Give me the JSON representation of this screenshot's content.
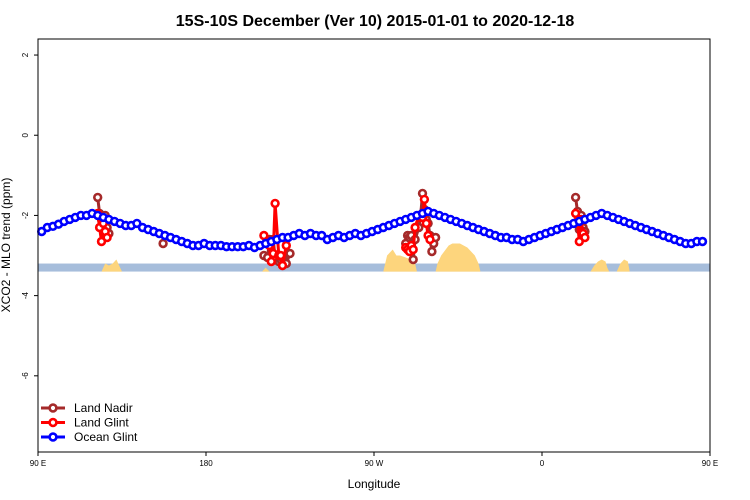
{
  "chart_data": {
    "type": "line",
    "title": "15S-10S December (Ver 10)   2015-01-01 to 2020-12-18",
    "xlabel": "Longitude",
    "ylabel": "XCO2 - MLO trend (ppm)",
    "xlim": [
      -180,
      180
    ],
    "ylim": [
      -7.9,
      2.4
    ],
    "x_ticks": [
      {
        "value": -180,
        "label": "90 E"
      },
      {
        "value": -90,
        "label": "180"
      },
      {
        "value": 0,
        "label": "90 W"
      },
      {
        "value": 90,
        "label": "0"
      },
      {
        "value": 180,
        "label": "90 E"
      }
    ],
    "y_ticks": [
      {
        "value": 2,
        "label": "2"
      },
      {
        "value": 0,
        "label": "0"
      },
      {
        "value": -2,
        "label": "-2"
      },
      {
        "value": -4,
        "label": "-4"
      },
      {
        "value": -6,
        "label": "-6"
      }
    ],
    "legend_position": "bottom-left",
    "land_band": {
      "y_top": -3.2,
      "y_bottom": -3.4,
      "color": "#a6bddb"
    },
    "land_mask": {
      "color": "#fdd57d",
      "regions": [
        [
          [
            -146,
            -3.4
          ],
          [
            -145,
            -3.3
          ],
          [
            -144,
            -3.2
          ],
          [
            -142,
            -3.25
          ],
          [
            -140,
            -3.2
          ],
          [
            -138,
            -3.1
          ],
          [
            -136,
            -3.3
          ],
          [
            -135,
            -3.4
          ]
        ],
        [
          [
            -60,
            -3.4
          ],
          [
            -58,
            -3.3
          ],
          [
            -57,
            -3.35
          ],
          [
            -56,
            -3.4
          ]
        ],
        [
          [
            5,
            -3.4
          ],
          [
            7,
            -3.0
          ],
          [
            10,
            -2.85
          ],
          [
            12,
            -3.0
          ],
          [
            14,
            -3.0
          ],
          [
            17,
            -3.05
          ],
          [
            20,
            -3.1
          ],
          [
            22,
            -3.2
          ],
          [
            23,
            -3.4
          ]
        ],
        [
          [
            33,
            -3.4
          ],
          [
            34,
            -3.2
          ],
          [
            36,
            -3.0
          ],
          [
            40,
            -2.75
          ],
          [
            42,
            -2.7
          ],
          [
            46,
            -2.7
          ],
          [
            50,
            -2.8
          ],
          [
            54,
            -3.0
          ],
          [
            56,
            -3.2
          ],
          [
            57,
            -3.4
          ]
        ],
        [
          [
            116,
            -3.4
          ],
          [
            118,
            -3.25
          ],
          [
            120,
            -3.15
          ],
          [
            122,
            -3.1
          ],
          [
            124,
            -3.15
          ],
          [
            125,
            -3.3
          ],
          [
            126,
            -3.4
          ]
        ],
        [
          [
            130,
            -3.4
          ],
          [
            132,
            -3.2
          ],
          [
            134,
            -3.1
          ],
          [
            136,
            -3.15
          ],
          [
            137,
            -3.4
          ]
        ]
      ]
    },
    "series": [
      {
        "name": "Land Nadir",
        "color": "#a52a2a",
        "segments": [
          [
            [
              -148,
              -1.55
            ],
            [
              -147,
              -1.95
            ],
            [
              -146,
              -2.1
            ],
            [
              -145,
              -2.3
            ],
            [
              -144,
              -2.0
            ],
            [
              -143,
              -2.3
            ],
            [
              -142,
              -2.45
            ]
          ],
          [
            [
              -113,
              -2.7
            ]
          ],
          [
            [
              -59,
              -3.0
            ],
            [
              -57,
              -3.05
            ],
            [
              -56,
              -2.6
            ],
            [
              -55,
              -2.65
            ],
            [
              -54,
              -2.6
            ],
            [
              -53,
              -3.05
            ],
            [
              -51,
              -3.15
            ],
            [
              -50,
              -3.1
            ],
            [
              -49,
              -3.05
            ],
            [
              -47,
              -3.2
            ],
            [
              -45,
              -2.95
            ]
          ],
          [
            [
              17,
              -2.7
            ],
            [
              18,
              -2.5
            ],
            [
              19,
              -2.55
            ],
            [
              20,
              -2.5
            ],
            [
              21,
              -3.1
            ],
            [
              22,
              -2.6
            ],
            [
              24,
              -2.3
            ],
            [
              25,
              -2.0
            ],
            [
              26,
              -1.45
            ],
            [
              27,
              -1.85
            ],
            [
              28,
              -2.1
            ],
            [
              29,
              -2.2
            ],
            [
              30,
              -2.5
            ],
            [
              31,
              -2.9
            ],
            [
              32,
              -2.7
            ],
            [
              33,
              -2.55
            ]
          ],
          [
            [
              108,
              -1.55
            ],
            [
              109,
              -1.9
            ],
            [
              110,
              -2.35
            ],
            [
              111,
              -2.0
            ],
            [
              112,
              -2.3
            ],
            [
              113,
              -2.4
            ]
          ]
        ]
      },
      {
        "name": "Land Glint",
        "color": "#ff0000",
        "segments": [
          [
            [
              -148,
              -1.95
            ],
            [
              -147,
              -2.3
            ],
            [
              -146,
              -2.65
            ],
            [
              -145,
              -2.2
            ],
            [
              -144,
              -2.4
            ],
            [
              -143,
              -2.55
            ]
          ],
          [
            [
              -59,
              -2.5
            ],
            [
              -57,
              -2.65
            ],
            [
              -56,
              -2.75
            ],
            [
              -55,
              -3.15
            ],
            [
              -54,
              -2.95
            ],
            [
              -53,
              -1.7
            ],
            [
              -51,
              -3.0
            ],
            [
              -50,
              -3.0
            ],
            [
              -49,
              -3.25
            ],
            [
              -47,
              -2.75
            ]
          ],
          [
            [
              17,
              -2.8
            ],
            [
              18,
              -2.85
            ],
            [
              19,
              -2.9
            ],
            [
              20,
              -2.75
            ],
            [
              21,
              -2.85
            ],
            [
              22,
              -2.3
            ],
            [
              24,
              -2.0
            ],
            [
              25,
              -2.05
            ],
            [
              26,
              -2.05
            ],
            [
              27,
              -1.6
            ],
            [
              28,
              -2.2
            ],
            [
              29,
              -2.5
            ],
            [
              30,
              -2.6
            ]
          ],
          [
            [
              108,
              -1.95
            ],
            [
              109,
              -2.15
            ],
            [
              110,
              -2.65
            ],
            [
              111,
              -2.1
            ],
            [
              112,
              -2.45
            ],
            [
              113,
              -2.55
            ]
          ]
        ]
      },
      {
        "name": "Ocean Glint",
        "color": "#0000ff",
        "segments": [
          [
            [
              -178,
              -2.4
            ],
            [
              -175,
              -2.3
            ],
            [
              -172,
              -2.27
            ],
            [
              -169,
              -2.22
            ],
            [
              -166,
              -2.15
            ],
            [
              -163,
              -2.1
            ],
            [
              -160,
              -2.05
            ],
            [
              -157,
              -2.0
            ],
            [
              -154,
              -2.0
            ],
            [
              -151,
              -1.95
            ],
            [
              -148,
              -2.0
            ],
            [
              -145,
              -2.05
            ],
            [
              -142,
              -2.1
            ],
            [
              -139,
              -2.15
            ],
            [
              -136,
              -2.2
            ],
            [
              -133,
              -2.25
            ],
            [
              -130,
              -2.25
            ],
            [
              -127,
              -2.2
            ],
            [
              -124,
              -2.3
            ],
            [
              -121,
              -2.35
            ],
            [
              -118,
              -2.4
            ],
            [
              -115,
              -2.45
            ],
            [
              -112,
              -2.5
            ],
            [
              -109,
              -2.55
            ],
            [
              -106,
              -2.6
            ],
            [
              -103,
              -2.65
            ],
            [
              -100,
              -2.7
            ],
            [
              -97,
              -2.75
            ],
            [
              -94,
              -2.75
            ],
            [
              -91,
              -2.7
            ],
            [
              -88,
              -2.75
            ],
            [
              -85,
              -2.75
            ],
            [
              -82,
              -2.75
            ],
            [
              -79,
              -2.78
            ],
            [
              -76,
              -2.78
            ],
            [
              -73,
              -2.78
            ],
            [
              -70,
              -2.78
            ],
            [
              -67,
              -2.75
            ],
            [
              -64,
              -2.8
            ],
            [
              -61,
              -2.75
            ],
            [
              -58,
              -2.7
            ],
            [
              -55,
              -2.65
            ],
            [
              -52,
              -2.6
            ],
            [
              -49,
              -2.55
            ],
            [
              -46,
              -2.55
            ],
            [
              -43,
              -2.5
            ],
            [
              -40,
              -2.45
            ],
            [
              -37,
              -2.5
            ],
            [
              -34,
              -2.45
            ],
            [
              -31,
              -2.5
            ],
            [
              -28,
              -2.5
            ],
            [
              -25,
              -2.6
            ],
            [
              -22,
              -2.55
            ],
            [
              -19,
              -2.5
            ],
            [
              -16,
              -2.55
            ],
            [
              -13,
              -2.5
            ],
            [
              -10,
              -2.45
            ],
            [
              -7,
              -2.5
            ],
            [
              -4,
              -2.45
            ],
            [
              -1,
              -2.4
            ],
            [
              2,
              -2.35
            ],
            [
              5,
              -2.3
            ],
            [
              8,
              -2.25
            ],
            [
              11,
              -2.2
            ],
            [
              14,
              -2.15
            ],
            [
              17,
              -2.1
            ],
            [
              20,
              -2.05
            ],
            [
              23,
              -2.0
            ],
            [
              26,
              -1.95
            ],
            [
              29,
              -1.9
            ],
            [
              32,
              -1.95
            ],
            [
              35,
              -2.0
            ],
            [
              38,
              -2.05
            ],
            [
              41,
              -2.1
            ],
            [
              44,
              -2.15
            ],
            [
              47,
              -2.2
            ],
            [
              50,
              -2.25
            ],
            [
              53,
              -2.3
            ],
            [
              56,
              -2.35
            ],
            [
              59,
              -2.4
            ],
            [
              62,
              -2.45
            ],
            [
              65,
              -2.5
            ],
            [
              68,
              -2.55
            ],
            [
              71,
              -2.55
            ],
            [
              74,
              -2.6
            ],
            [
              77,
              -2.6
            ],
            [
              80,
              -2.65
            ],
            [
              83,
              -2.6
            ],
            [
              86,
              -2.55
            ],
            [
              89,
              -2.5
            ],
            [
              92,
              -2.45
            ],
            [
              95,
              -2.4
            ],
            [
              98,
              -2.35
            ],
            [
              101,
              -2.3
            ],
            [
              104,
              -2.25
            ],
            [
              107,
              -2.2
            ],
            [
              110,
              -2.15
            ],
            [
              113,
              -2.1
            ],
            [
              116,
              -2.05
            ],
            [
              119,
              -2.0
            ],
            [
              122,
              -1.95
            ],
            [
              125,
              -2.0
            ],
            [
              128,
              -2.05
            ],
            [
              131,
              -2.1
            ],
            [
              134,
              -2.15
            ],
            [
              137,
              -2.2
            ],
            [
              140,
              -2.25
            ],
            [
              143,
              -2.3
            ],
            [
              146,
              -2.35
            ],
            [
              149,
              -2.4
            ],
            [
              152,
              -2.45
            ],
            [
              155,
              -2.5
            ],
            [
              158,
              -2.55
            ],
            [
              161,
              -2.6
            ],
            [
              164,
              -2.65
            ],
            [
              167,
              -2.7
            ],
            [
              170,
              -2.7
            ],
            [
              173,
              -2.65
            ],
            [
              176,
              -2.65
            ]
          ]
        ]
      }
    ]
  }
}
